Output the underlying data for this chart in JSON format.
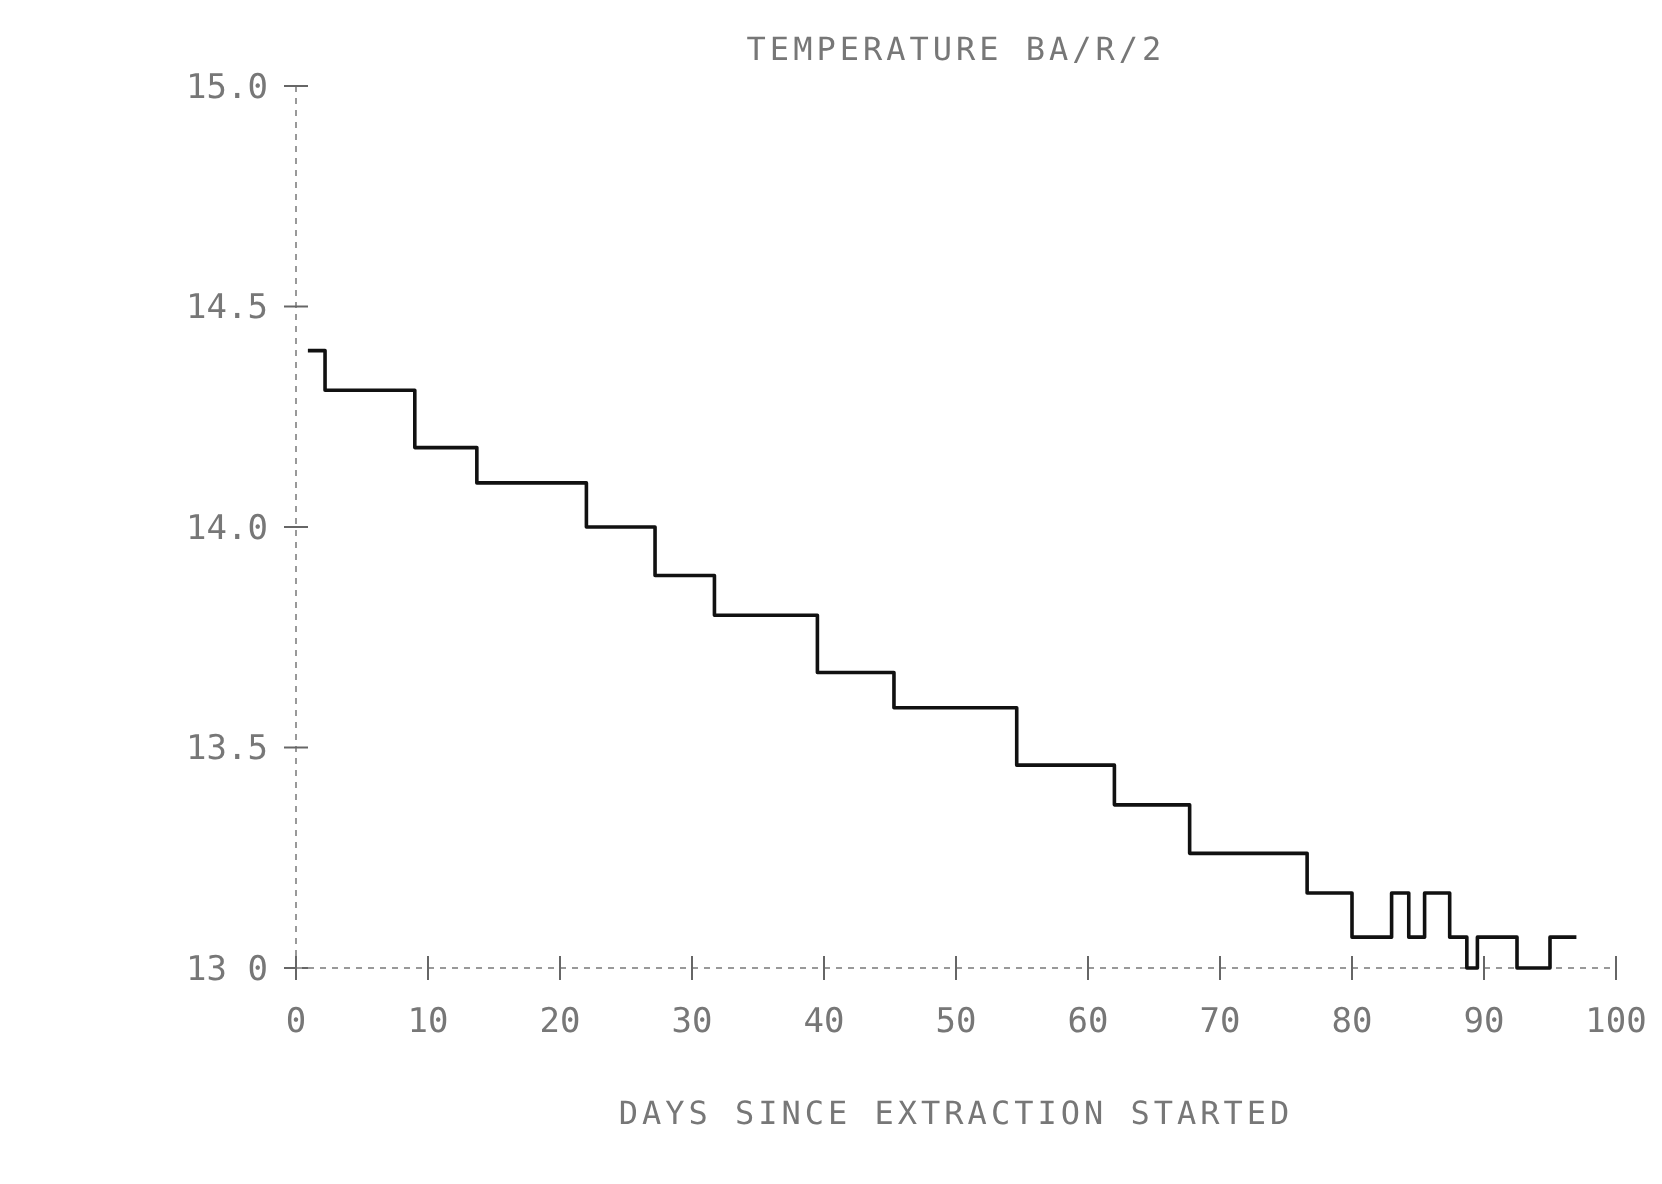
{
  "chart_data": {
    "type": "step",
    "title": "TEMPERATURE BA/R/2",
    "xlabel": "DAYS SINCE EXTRACTION STARTED",
    "x": [
      0.9,
      2.2,
      9,
      13.7,
      22,
      27.2,
      31.7,
      39.5,
      45.3,
      54.6,
      62,
      67.7,
      76.6,
      80,
      83,
      84.3,
      85.5,
      87.4,
      88.7,
      89.5,
      92.5,
      95,
      97
    ],
    "series": [
      {
        "color": "#111111",
        "values": [
          14.4,
          14.31,
          14.18,
          14.1,
          14.0,
          13.89,
          13.8,
          13.67,
          13.59,
          13.46,
          13.37,
          13.26,
          13.17,
          13.07,
          13.17,
          13.07,
          13.17,
          13.07,
          13.0,
          13.07,
          13.0,
          13.07,
          13.07
        ]
      }
    ],
    "xlim": [
      0,
      100
    ],
    "xticks": [
      0,
      10,
      20,
      30,
      40,
      50,
      60,
      70,
      80,
      90,
      100
    ],
    "ylim": [
      13.0,
      15.0
    ],
    "yticks": [
      {
        "value": 13.0,
        "label": "13 0"
      },
      {
        "value": 13.5,
        "label": "13.5"
      },
      {
        "value": 14.0,
        "label": "14.0"
      },
      {
        "value": 14.5,
        "label": "14.5"
      },
      {
        "value": 15.0,
        "label": "15.0"
      }
    ],
    "grid": false,
    "marker": "none",
    "line_style": "solid"
  }
}
